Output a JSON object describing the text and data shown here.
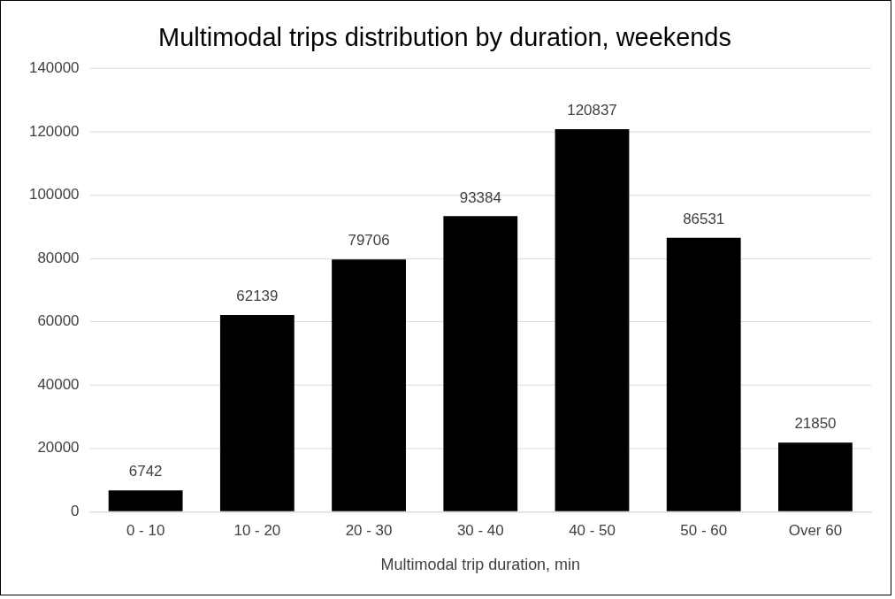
{
  "chart_data": {
    "type": "bar",
    "title": "Multimodal trips distribution by duration, weekends",
    "xlabel": "Multimodal trip duration, min",
    "categories": [
      "0 - 10",
      "10 - 20",
      "20 - 30",
      "30 - 40",
      "40 - 50",
      "50 - 60",
      "Over 60"
    ],
    "values": [
      6742,
      62139,
      79706,
      93384,
      120837,
      86531,
      21850
    ],
    "color": "#000000",
    "ylim": [
      0,
      140000
    ],
    "yticks": [
      0,
      20000,
      40000,
      60000,
      80000,
      100000,
      120000,
      140000
    ],
    "grid": "y",
    "data_labels": true,
    "legend": false
  }
}
